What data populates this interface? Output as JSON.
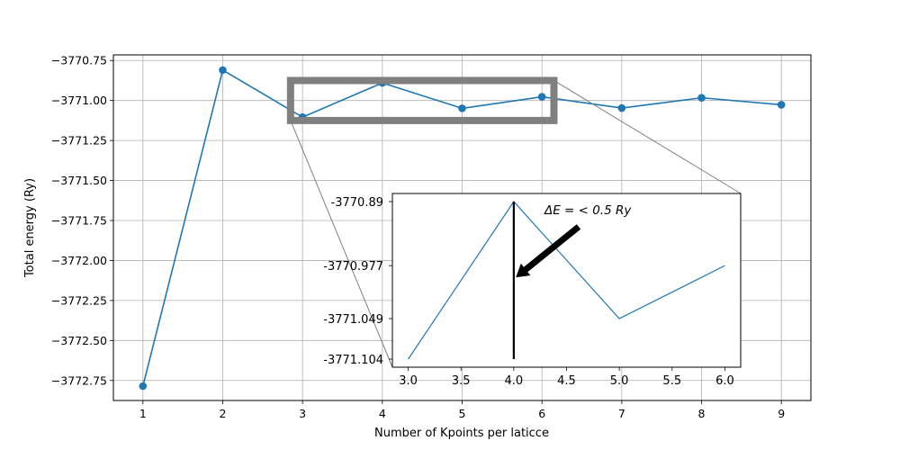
{
  "chart_data": {
    "type": "line",
    "main": {
      "x": [
        1,
        2,
        3,
        4,
        5,
        6,
        7,
        8,
        9
      ],
      "y": [
        -3772.785,
        -3770.81,
        -3771.104,
        -3770.89,
        -3771.049,
        -3770.977,
        -3771.047,
        -3770.983,
        -3771.027
      ],
      "xlim": [
        0.63,
        9.37
      ],
      "ylim": [
        -3772.875,
        -3770.715
      ],
      "xticks": [
        1,
        2,
        3,
        4,
        5,
        6,
        7,
        8,
        9
      ],
      "yticks": [
        -3770.75,
        -3771.0,
        -3771.25,
        -3771.5,
        -3771.75,
        -3772.0,
        -3772.25,
        -3772.5,
        -3772.75
      ],
      "ytick_labels": [
        "−3770.75",
        "−3771.00",
        "−3771.25",
        "−3771.50",
        "−3771.75",
        "−3772.00",
        "−3772.25",
        "−3772.50",
        "−3772.75"
      ],
      "xlabel": "Number of Kpoints per laticce",
      "ylabel": "Total energy (Ry)",
      "grid": true,
      "color": "#1f77b4",
      "marker": "circle",
      "zoom_box": {
        "x": [
          2.85,
          6.15
        ],
        "y": [
          -3771.125,
          -3770.875
        ],
        "color": "#808080"
      }
    },
    "inset": {
      "x": [
        3,
        4,
        5,
        6
      ],
      "y": [
        -3771.104,
        -3770.89,
        -3771.049,
        -3770.977
      ],
      "xlim": [
        2.85,
        6.15
      ],
      "ylim": [
        -3771.115,
        -3770.879
      ],
      "xticks": [
        3.0,
        3.5,
        4.0,
        4.5,
        5.0,
        5.5,
        6.0
      ],
      "xtick_labels": [
        "3.0",
        "3.5",
        "4.0",
        "4.5",
        "5.0",
        "5.5",
        "6.0"
      ],
      "yticks": [
        -3770.89,
        -3770.977,
        -3771.049,
        -3771.104
      ],
      "ytick_labels": [
        "-3770.89",
        "-3770.977",
        "-3771.049",
        "-3771.104"
      ],
      "vline": {
        "x": 4.0,
        "y_from": -3771.104,
        "y_to": -3770.89
      },
      "color": "#1f77b4",
      "annotation": {
        "text": "ΔE = < 0.5 Ry",
        "text_at": {
          "x": 4.7,
          "y": -3770.907
        },
        "arrow_to": {
          "x": 4.02,
          "y": -3770.993
        }
      }
    }
  }
}
